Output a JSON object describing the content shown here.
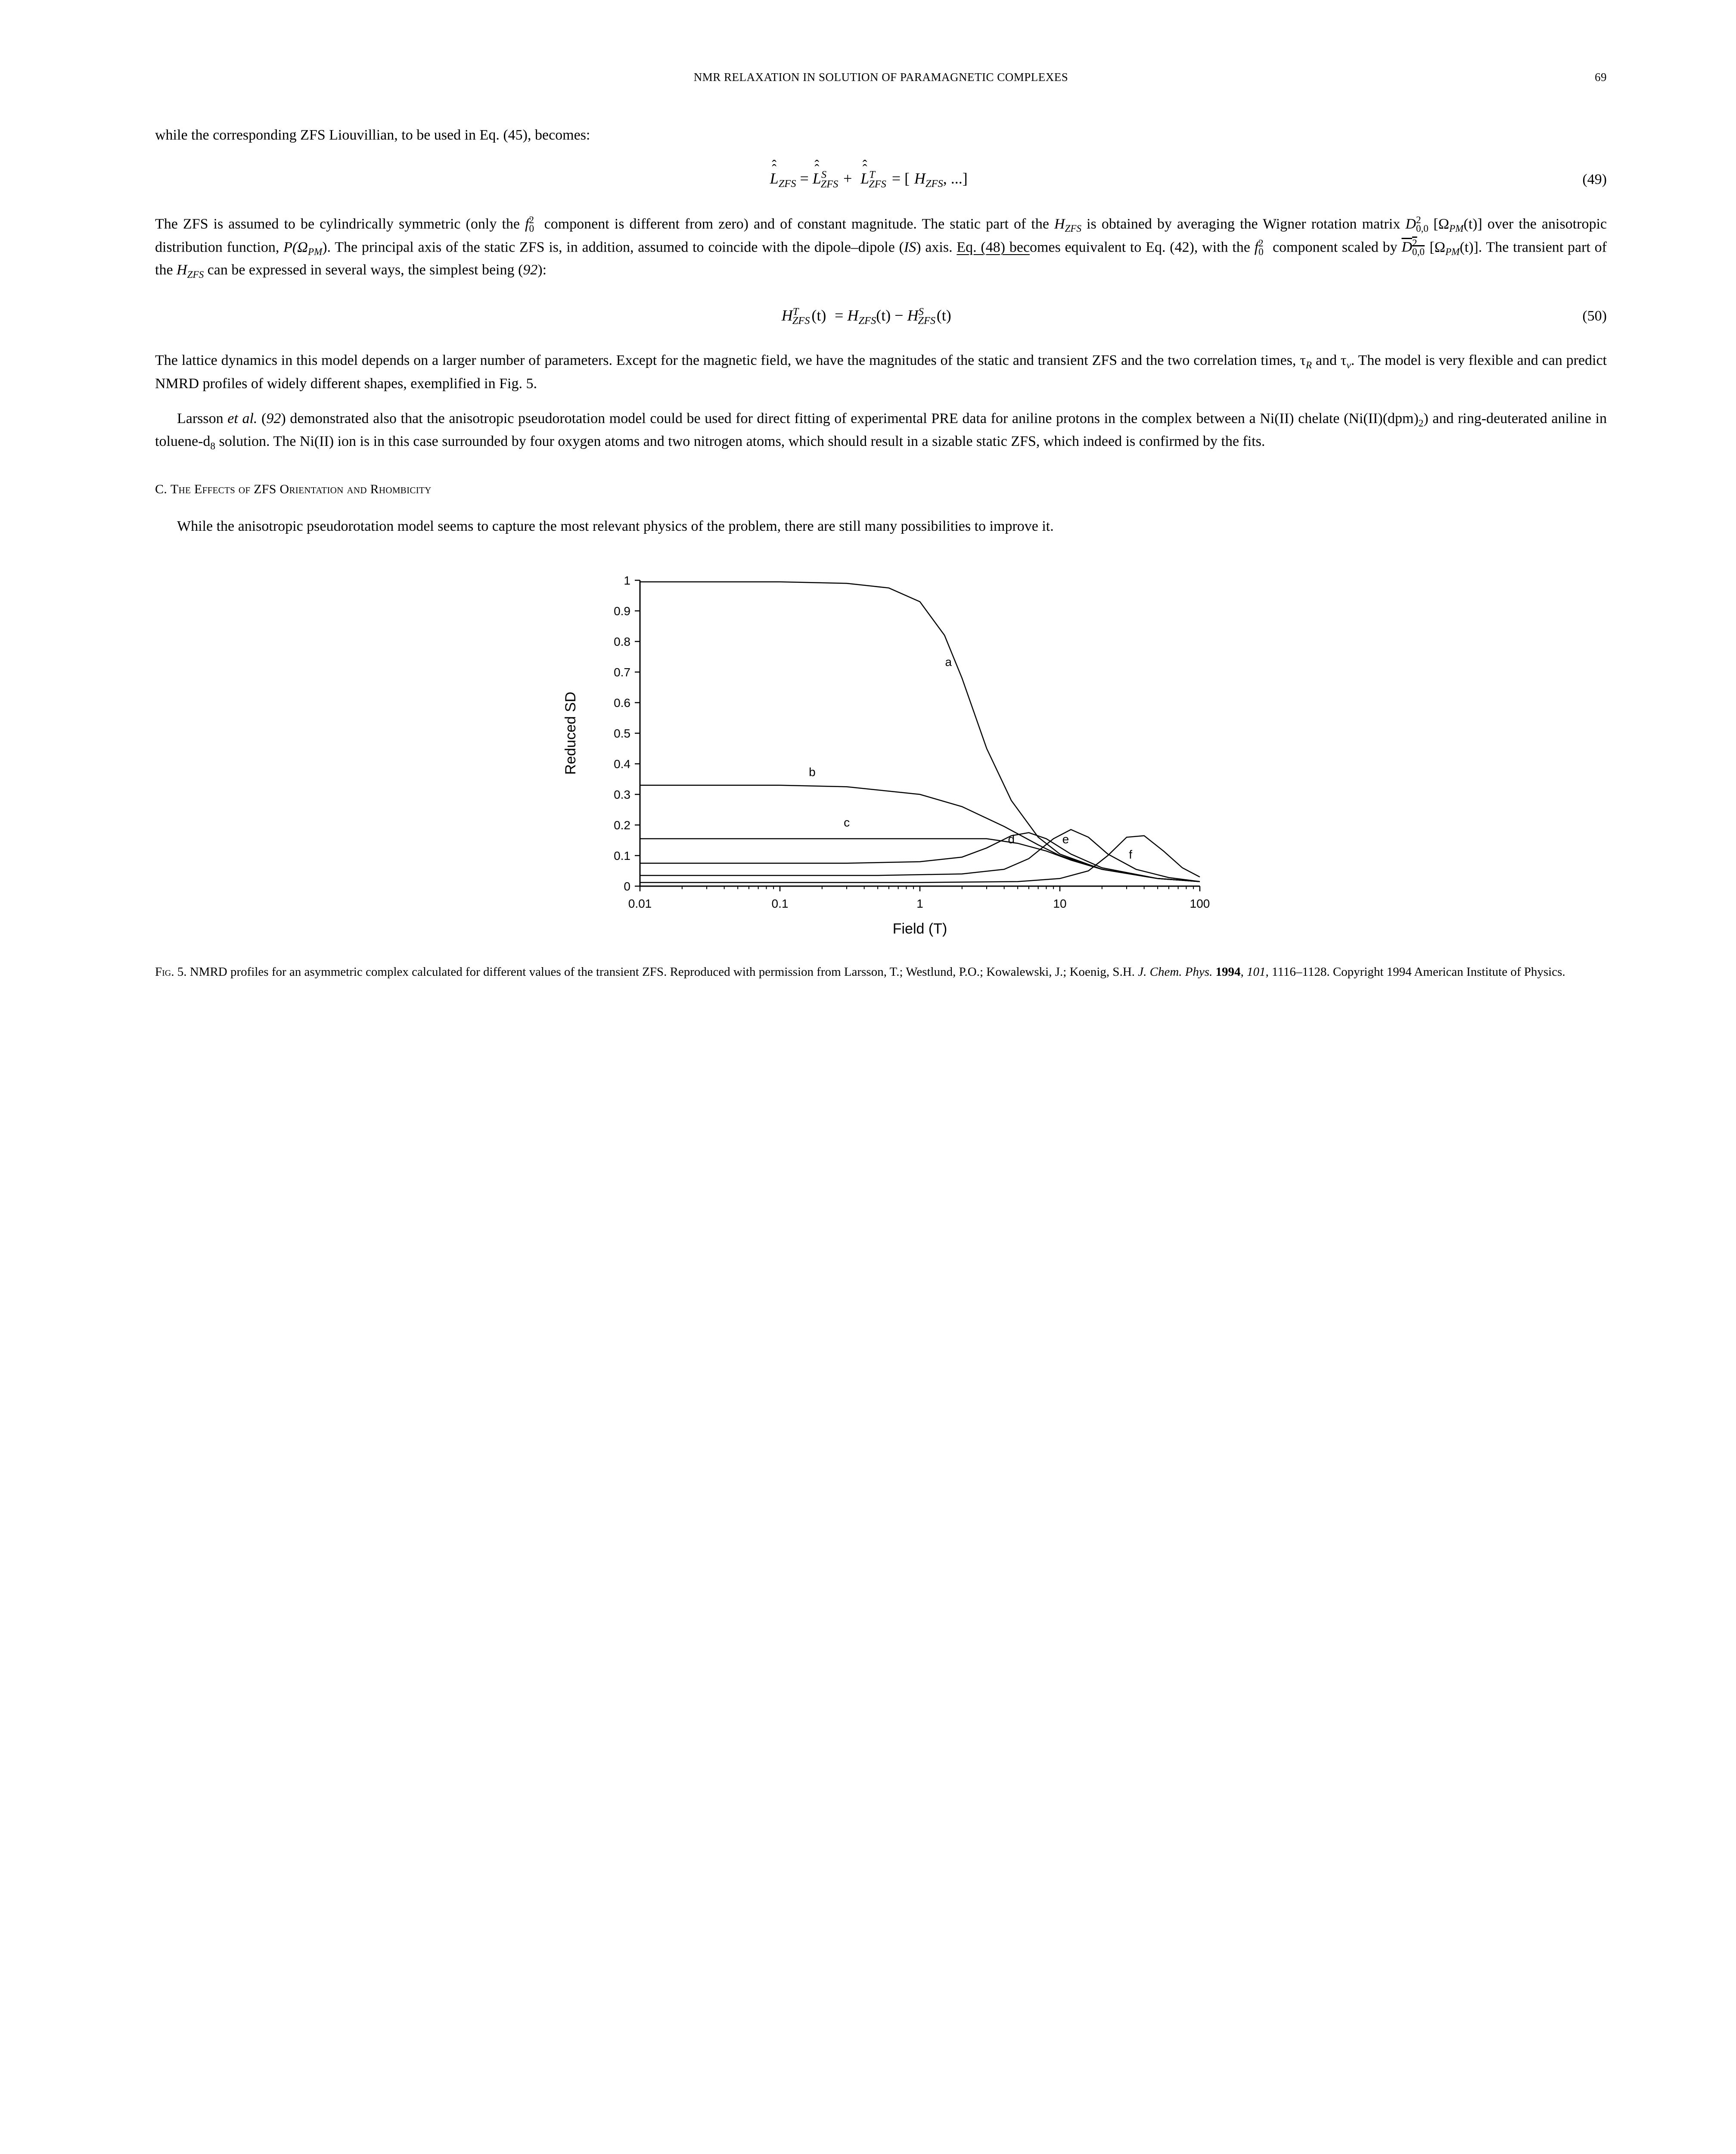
{
  "header": {
    "running_title": "NMR RELAXATION IN SOLUTION OF PARAMAGNETIC COMPLEXES",
    "page_number": "69"
  },
  "paragraphs": {
    "p1": "while the corresponding ZFS Liouvillian, to be used in Eq. (45), becomes:",
    "p2a": "The ZFS is assumed to be cylindrically symmetric (only the ",
    "p2b": " component is different from zero) and of constant magnitude. The static part of the ",
    "p2c": " is obtained by averaging the Wigner rotation matrix ",
    "p2d": " over the anisotropic distribution function, ",
    "p2e": ". The principal axis of the static ZFS is, in addition, assumed to coincide with the dipole–dipole (",
    "p2f": ") axis. ",
    "p2g": "Eq. (48) bec",
    "p2h": "omes equivalent to Eq. (42), with the ",
    "p2i": " component scaled by ",
    "p2j": ". The transient part of the ",
    "p2k": " can be expressed in several ways, the simplest being (",
    "p2l": "):",
    "p3a": "The lattice dynamics in this model depends on a larger number of parameters. Except for the magnetic field, we have the magnitudes of the static and transient ZFS and the two correlation times, τ",
    "p3b": " and τ",
    "p3c": ". The model is very flexible and can predict NMRD profiles of widely different shapes, exemplified in Fig. 5.",
    "p4a": "Larsson ",
    "p4b": "et al.",
    "p4c": " (",
    "p4d": ") demonstrated also that the anisotropic pseudorotation model could be used for direct fitting of experimental PRE data for aniline protons in the complex between a Ni(II) chelate (Ni(II)(dpm)",
    "p4e": ") and ring-deuterated aniline in toluene-d",
    "p4f": " solution. The Ni(II) ion is in this case surrounded by four oxygen atoms and two nitrogen atoms, which should result in a sizable static ZFS, which indeed is confirmed by the fits.",
    "p5": "While the anisotropic pseudorotation model seems to capture the most relevant physics of the problem, there are still many possibilities to improve it."
  },
  "refs": {
    "r92": "92"
  },
  "inline_math": {
    "f02_base": "f",
    "f02_sup": "2",
    "f02_sub": "0",
    "Hzfs": "H",
    "zfs_sub": "ZFS",
    "D200_base": "D",
    "D200_sup": "2",
    "D200_sub": "0,0",
    "Omega_arg_open": "[Ω",
    "Omega_PM": "PM",
    "Omega_arg_t": "(t)]",
    "P_open": "P(Ω",
    "P_close": ")",
    "IS": "IS",
    "D200bar_prefix_open": "[Ω",
    "sub2": "2",
    "sub8": "8",
    "tauR": "R",
    "tauv": "v"
  },
  "equations": {
    "eq49": {
      "number": "(49)",
      "lhs_L": "L",
      "sub_zfs": "ZFS",
      "eq_sign": " = ",
      "supS": "S",
      "plus": " + ",
      "supT": "T",
      "rhs_open": " = [",
      "rhs_H": "H",
      "rhs_close": ", ...]"
    },
    "eq50": {
      "number": "(50)",
      "H": "H",
      "supT": "T",
      "sub_zfs": "ZFS",
      "t_arg": "(t)",
      "eq_sign": " = ",
      "minus": " − ",
      "supS": "S"
    }
  },
  "section": {
    "label": "C.  ",
    "title_sc": "The Effects of ZFS Orientation and Rhombicity"
  },
  "figure5": {
    "type": "line",
    "x_label": "Field (T)",
    "y_label": "Reduced SD",
    "x_scale": "log",
    "xlim": [
      0.01,
      100
    ],
    "ylim": [
      0,
      1
    ],
    "x_ticks": [
      0.01,
      0.1,
      1,
      10,
      100
    ],
    "x_tick_labels": [
      "0.01",
      "0.1",
      "1",
      "10",
      "100"
    ],
    "y_ticks": [
      0,
      0.1,
      0.2,
      0.3,
      0.4,
      0.5,
      0.6,
      0.7,
      0.8,
      0.9,
      1
    ],
    "y_tick_labels": [
      "0",
      "0.1",
      "0.2",
      "0.3",
      "0.4",
      "0.5",
      "0.6",
      "0.7",
      "0.8",
      "0.9",
      "1"
    ],
    "minor_ticks_per_decade": [
      2,
      3,
      4,
      5,
      6,
      7,
      8,
      9
    ],
    "background_color": "#ffffff",
    "axis_color": "#000000",
    "line_color": "#000000",
    "line_width": 2.5,
    "tick_length": 12,
    "minor_tick_length": 7,
    "label_fontsize": 34,
    "tick_fontsize": 28,
    "series_labels": {
      "a": {
        "text": "a",
        "x": 1.6,
        "y": 0.72
      },
      "b": {
        "text": "b",
        "x": 0.17,
        "y": 0.36
      },
      "c": {
        "text": "c",
        "x": 0.3,
        "y": 0.195
      },
      "d": {
        "text": "d",
        "x": 4.5,
        "y": 0.14
      },
      "e": {
        "text": "e",
        "x": 11,
        "y": 0.14
      },
      "f": {
        "text": "f",
        "x": 32,
        "y": 0.09
      }
    },
    "series": {
      "a": [
        [
          0.01,
          0.995
        ],
        [
          0.1,
          0.995
        ],
        [
          0.3,
          0.99
        ],
        [
          0.6,
          0.975
        ],
        [
          1.0,
          0.93
        ],
        [
          1.5,
          0.82
        ],
        [
          2.0,
          0.68
        ],
        [
          3.0,
          0.45
        ],
        [
          4.5,
          0.28
        ],
        [
          7.0,
          0.16
        ],
        [
          10,
          0.105
        ],
        [
          20,
          0.055
        ],
        [
          50,
          0.025
        ],
        [
          100,
          0.015
        ]
      ],
      "b": [
        [
          0.01,
          0.33
        ],
        [
          0.05,
          0.33
        ],
        [
          0.1,
          0.33
        ],
        [
          0.3,
          0.325
        ],
        [
          1.0,
          0.3
        ],
        [
          2.0,
          0.26
        ],
        [
          4.0,
          0.195
        ],
        [
          7.0,
          0.135
        ],
        [
          10,
          0.1
        ],
        [
          20,
          0.055
        ],
        [
          50,
          0.025
        ],
        [
          100,
          0.015
        ]
      ],
      "c": [
        [
          0.01,
          0.155
        ],
        [
          0.1,
          0.155
        ],
        [
          0.5,
          0.155
        ],
        [
          1.5,
          0.155
        ],
        [
          3.0,
          0.155
        ],
        [
          5.0,
          0.14
        ],
        [
          8.0,
          0.115
        ],
        [
          12,
          0.085
        ],
        [
          20,
          0.055
        ],
        [
          50,
          0.025
        ],
        [
          100,
          0.015
        ]
      ],
      "d": [
        [
          0.01,
          0.075
        ],
        [
          0.3,
          0.075
        ],
        [
          1.0,
          0.08
        ],
        [
          2.0,
          0.095
        ],
        [
          3.0,
          0.125
        ],
        [
          4.5,
          0.165
        ],
        [
          6.0,
          0.175
        ],
        [
          8.0,
          0.155
        ],
        [
          12,
          0.105
        ],
        [
          20,
          0.06
        ],
        [
          50,
          0.025
        ],
        [
          100,
          0.015
        ]
      ],
      "e": [
        [
          0.01,
          0.035
        ],
        [
          0.5,
          0.035
        ],
        [
          2.0,
          0.04
        ],
        [
          4.0,
          0.055
        ],
        [
          6.0,
          0.09
        ],
        [
          9.0,
          0.155
        ],
        [
          12,
          0.185
        ],
        [
          16,
          0.16
        ],
        [
          22,
          0.105
        ],
        [
          35,
          0.055
        ],
        [
          60,
          0.028
        ],
        [
          100,
          0.015
        ]
      ],
      "f": [
        [
          0.01,
          0.012
        ],
        [
          1.0,
          0.012
        ],
        [
          5.0,
          0.015
        ],
        [
          10,
          0.025
        ],
        [
          16,
          0.05
        ],
        [
          22,
          0.1
        ],
        [
          30,
          0.16
        ],
        [
          40,
          0.165
        ],
        [
          55,
          0.115
        ],
        [
          75,
          0.06
        ],
        [
          100,
          0.03
        ]
      ]
    }
  },
  "caption": {
    "lead_sc": "Fig",
    "lead_rest": ". 5.  NMRD profiles for an asymmetric complex calculated for different values of the transient ZFS. Reproduced with permission from Larsson, T.; Westlund, P.O.; Kowalewski, J.; Koenig, S.H. ",
    "journal_it": "J. Chem. Phys.",
    "after_journal": " ",
    "year_bold": "1994",
    "after_year": ", ",
    "vol_it": "101",
    "tail": ", 1116–1128. Copyright 1994 American Institute of Physics."
  }
}
